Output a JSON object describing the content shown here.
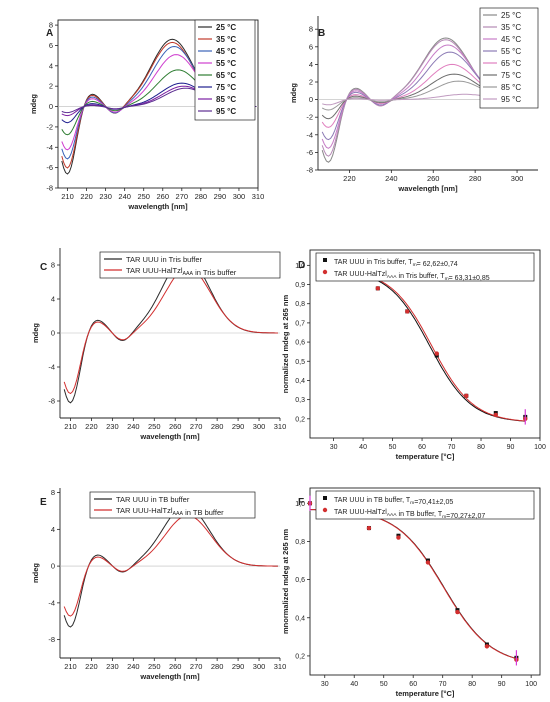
{
  "chart_data": [
    {
      "panel": "A",
      "type": "line",
      "xlabel": "wavelength [nm]",
      "ylabel": "mdeg",
      "xlim": [
        205,
        310
      ],
      "ylim": [
        -8,
        8.5
      ],
      "xticks": [
        "210",
        "220",
        "230",
        "240",
        "250",
        "260",
        "270",
        "280",
        "290",
        "300",
        "310"
      ],
      "yticks": [
        "-8",
        "-6",
        "-4",
        "-2",
        "0",
        "2",
        "4",
        "6",
        "8"
      ],
      "legend_position": "top-right",
      "series": [
        {
          "name": "25 °C",
          "color": "#2b2b2b",
          "min": -6.7,
          "max": 6.6,
          "peak_x": 265
        },
        {
          "name": "35 °C",
          "color": "#c03a2b",
          "min": -6.1,
          "max": 6.3,
          "peak_x": 265
        },
        {
          "name": "45 °C",
          "color": "#3a62b8",
          "min": -5.2,
          "max": 5.9,
          "peak_x": 266
        },
        {
          "name": "55 °C",
          "color": "#cf3fcf",
          "min": -4.3,
          "max": 5.1,
          "peak_x": 267
        },
        {
          "name": "65 °C",
          "color": "#2e7d32",
          "min": -2.8,
          "max": 3.6,
          "peak_x": 268
        },
        {
          "name": "75 °C",
          "color": "#1f1f8f",
          "min": -1.6,
          "max": 2.3,
          "peak_x": 270
        },
        {
          "name": "85 °C",
          "color": "#7b1fa2",
          "min": -0.9,
          "max": 2.0,
          "peak_x": 271
        },
        {
          "name": "95 °C",
          "color": "#5c2d91",
          "min": -0.6,
          "max": 1.8,
          "peak_x": 272
        }
      ]
    },
    {
      "panel": "B",
      "type": "line",
      "xlabel": "wavelength [nm]",
      "ylabel": "mdeg",
      "xlim": [
        205,
        310
      ],
      "ylim": [
        -8,
        9.5
      ],
      "xticks": [
        "220",
        "240",
        "260",
        "280",
        "300"
      ],
      "yticks": [
        "-8",
        "-6",
        "-4",
        "-2",
        "0",
        "2",
        "4",
        "6",
        "8"
      ],
      "legend_position": "top-right",
      "series": [
        {
          "name": "25 °C",
          "color": "#888888",
          "min": -7.2,
          "max": 7.0,
          "peak_x": 266
        },
        {
          "name": "35 °C",
          "color": "#b58ab5",
          "min": -6.5,
          "max": 6.8,
          "peak_x": 266
        },
        {
          "name": "45 °C",
          "color": "#c77dc7",
          "min": -5.6,
          "max": 6.2,
          "peak_x": 267
        },
        {
          "name": "55 °C",
          "color": "#8c7bb5",
          "min": -4.6,
          "max": 5.4,
          "peak_x": 268
        },
        {
          "name": "65 °C",
          "color": "#e07fbf",
          "min": -3.2,
          "max": 4.0,
          "peak_x": 269
        },
        {
          "name": "75 °C",
          "color": "#6d6d6d",
          "min": -2.2,
          "max": 2.9,
          "peak_x": 270
        },
        {
          "name": "85 °C",
          "color": "#9a9a9a",
          "min": -1.2,
          "max": 2.1,
          "peak_x": 272
        },
        {
          "name": "95 °C",
          "color": "#c09bc0",
          "min": -0.6,
          "max": 0.6,
          "peak_x": 275
        }
      ]
    },
    {
      "panel": "C",
      "type": "line",
      "xlabel": "wavelength [nm]",
      "ylabel": "mdeg",
      "xlim": [
        205,
        310
      ],
      "ylim": [
        -10,
        10
      ],
      "xticks": [
        "210",
        "220",
        "230",
        "240",
        "250",
        "260",
        "270",
        "280",
        "290",
        "300",
        "310"
      ],
      "yticks": [
        "-8",
        "-4",
        "0",
        "4",
        "8"
      ],
      "legend_position": "top-left",
      "series": [
        {
          "name": "TAR UUU in Tris buffer",
          "color": "#2b2b2b",
          "min": -8.3,
          "max": 9.0,
          "peak_x": 265
        },
        {
          "name": "TAR UUU-HalTzl",
          "sub": "AAA",
          "suffix": " in Tris buffer",
          "color": "#d22f2f",
          "min": -7.2,
          "max": 7.7,
          "peak_x": 266
        }
      ]
    },
    {
      "panel": "D",
      "type": "scatter",
      "xlabel": "temperature [°C]",
      "ylabel": "normalized mdeg at 265 nm",
      "xlim": [
        22,
        100
      ],
      "ylim": [
        0.1,
        1.08
      ],
      "xticks": [
        "30",
        "40",
        "50",
        "60",
        "70",
        "80",
        "90",
        "100"
      ],
      "yticks": [
        "0,2",
        "0,3",
        "0,4",
        "0,5",
        "0,6",
        "0,7",
        "0,8",
        "0,9",
        "1,0"
      ],
      "legend_position": "top",
      "x": [
        25,
        35,
        45,
        55,
        65,
        75,
        85,
        95
      ],
      "series": [
        {
          "name": "TAR UUU in Tris buffer, T",
          "sub": "m",
          "suffix": "= 62,62±0,74",
          "color": "#111111",
          "marker": "square",
          "values": [
            0.98,
            0.95,
            0.88,
            0.76,
            0.53,
            0.32,
            0.23,
            0.21
          ]
        },
        {
          "name": "TAR UUU-HalTzl",
          "sub": "AAA",
          "suffix": " in Tris buffer, T",
          "sub2": "m",
          "suffix2": "= 63,31±0,85",
          "color": "#d22f2f",
          "marker": "circle",
          "values": [
            0.99,
            0.95,
            0.88,
            0.76,
            0.54,
            0.32,
            0.22,
            0.2
          ]
        }
      ],
      "fits": [
        {
          "color": "#111111",
          "tm": 62.62,
          "top": 0.98,
          "bottom": 0.18,
          "slope": 7.0
        },
        {
          "color": "#d22f2f",
          "tm": 63.31,
          "top": 0.98,
          "bottom": 0.18,
          "slope": 7.0
        }
      ]
    },
    {
      "panel": "E",
      "type": "line",
      "xlabel": "wavelength [nm]",
      "ylabel": "mdeg",
      "xlim": [
        205,
        310
      ],
      "ylim": [
        -10,
        8.5
      ],
      "xticks": [
        "210",
        "220",
        "230",
        "240",
        "250",
        "260",
        "270",
        "280",
        "290",
        "300",
        "310"
      ],
      "yticks": [
        "-8",
        "-4",
        "0",
        "4",
        "8"
      ],
      "legend_position": "top",
      "series": [
        {
          "name": "TAR UUU in TB buffer",
          "color": "#2b2b2b",
          "min": -6.7,
          "max": 6.6,
          "peak_x": 265
        },
        {
          "name": "TAR UUU-HalTzl",
          "sub": "AAA",
          "suffix": " in TB buffer",
          "color": "#d22f2f",
          "min": -5.5,
          "max": 5.5,
          "peak_x": 266
        }
      ]
    },
    {
      "panel": "F",
      "type": "scatter",
      "xlabel": "temperature [°C]",
      "ylabel": "mnormalized mdeg at 265 nm",
      "xlim": [
        25,
        103
      ],
      "ylim": [
        0.1,
        1.08
      ],
      "xticks": [
        "30",
        "40",
        "50",
        "60",
        "70",
        "80",
        "90",
        "100"
      ],
      "yticks": [
        "0,2",
        "0,4",
        "0,6",
        "0,8",
        "1,0"
      ],
      "legend_position": "top",
      "x": [
        25,
        35,
        45,
        55,
        65,
        75,
        85,
        95
      ],
      "series": [
        {
          "name": "TAR UUU in TB buffer, T",
          "sub": "m",
          "suffix": "=70,41±2,05",
          "color": "#111111",
          "marker": "square",
          "values": [
            1.0,
            0.96,
            0.87,
            0.83,
            0.7,
            0.44,
            0.26,
            0.19
          ]
        },
        {
          "name": "TAR UUU-HalTzl",
          "sub": "AAA",
          "suffix": " in TB buffer, T",
          "sub2": "m",
          "suffix2": "=70,27±2,07",
          "color": "#d22f2f",
          "marker": "circle",
          "values": [
            1.0,
            0.96,
            0.87,
            0.82,
            0.69,
            0.43,
            0.25,
            0.18
          ]
        }
      ],
      "fits": [
        {
          "color": "#111111",
          "tm": 70.41,
          "top": 0.97,
          "bottom": 0.15,
          "slope": 8.0
        },
        {
          "color": "#d22f2f",
          "tm": 70.27,
          "top": 0.97,
          "bottom": 0.15,
          "slope": 8.0
        }
      ]
    }
  ]
}
